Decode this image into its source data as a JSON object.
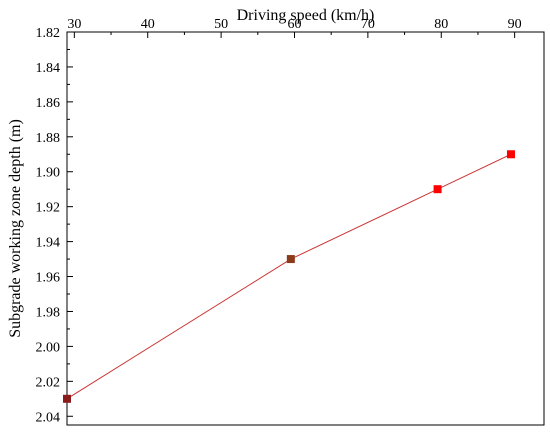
{
  "chart_data": {
    "type": "line",
    "xlabel": "Driving speed (km/h)",
    "ylabel": "Subgrade working zone depth (m)",
    "x_axis_position": "top",
    "y_axis_inverted": true,
    "xlim": [
      29,
      94
    ],
    "ylim": [
      1.82,
      2.045
    ],
    "x_ticks": [
      30,
      40,
      50,
      60,
      70,
      80,
      90
    ],
    "y_ticks": [
      1.82,
      1.84,
      1.86,
      1.88,
      1.9,
      1.92,
      1.94,
      1.96,
      1.98,
      2.0,
      2.02,
      2.04
    ],
    "x_tick_labels": [
      "30",
      "40",
      "50",
      "60",
      "70",
      "80",
      "90"
    ],
    "y_tick_labels": [
      "1.82",
      "1.84",
      "1.86",
      "1.88",
      "1.90",
      "1.92",
      "1.94",
      "1.96",
      "1.98",
      "2.00",
      "2.02",
      "2.04"
    ],
    "grid": false,
    "series": [
      {
        "x": [
          29,
          59.5,
          79.5,
          89.5
        ],
        "y": [
          2.03,
          1.95,
          1.91,
          1.89
        ],
        "point_colors": [
          "#8b1a1a",
          "#8b3a1a",
          "#ff0000",
          "#ff0000"
        ],
        "line_color": "#cc3333"
      }
    ]
  }
}
